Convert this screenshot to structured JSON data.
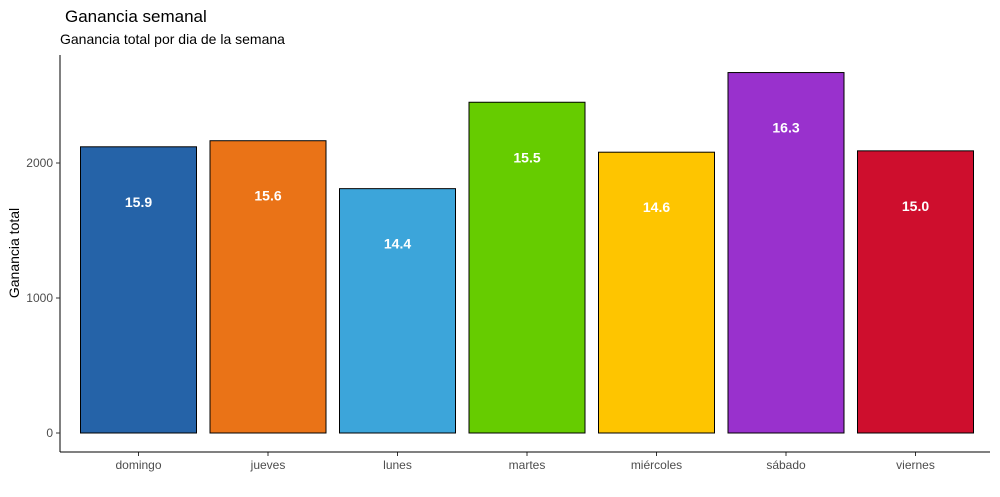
{
  "chart_data": {
    "type": "bar",
    "title": "Ganancia semanal",
    "subtitle": "Ganancia total por dia de la semana",
    "xlabel": "",
    "ylabel": "Ganancia total",
    "ylim": [
      0,
      2750
    ],
    "yticks": [
      0,
      1000,
      2000
    ],
    "grid": false,
    "legend": "none",
    "categories": [
      "domingo",
      "jueves",
      "lunes",
      "martes",
      "miércoles",
      "sábado",
      "viernes"
    ],
    "values": [
      2120,
      2165,
      1810,
      2450,
      2080,
      2670,
      2090
    ],
    "data_labels": [
      "15.9",
      "15.6",
      "14.4",
      "15.5",
      "14.6",
      "16.3",
      "15.0"
    ],
    "colors": [
      "#2563A8",
      "#EA7317",
      "#3CA5DA",
      "#66CC00",
      "#FEC500",
      "#9931CD",
      "#CE0E2D"
    ]
  }
}
